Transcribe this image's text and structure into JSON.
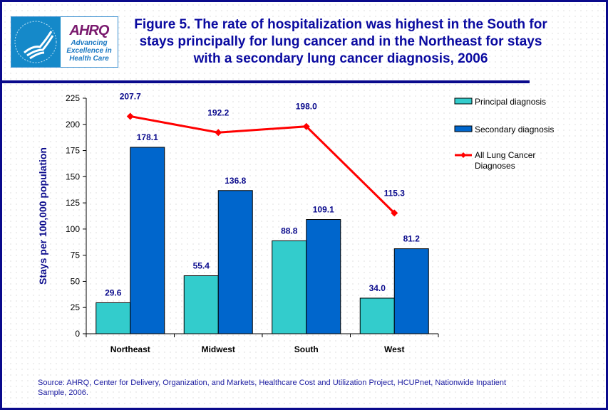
{
  "header": {
    "title": "Figure 5. The rate of hospitalization was highest in the South for stays principally for lung cancer and in the Northeast for stays with a secondary lung cancer diagnosis, 2006",
    "logo": {
      "brand": "AHRQ",
      "tagline": [
        "Advancing",
        "Excellence in",
        "Health Care"
      ]
    }
  },
  "source": "Source: AHRQ, Center for Delivery, Organization, and Markets, Healthcare Cost and Utilization Project, HCUPnet, Nationwide Inpatient Sample, 2006.",
  "colors": {
    "principal": "#33cccc",
    "secondary": "#0066cc",
    "line": "#ff0000",
    "labels": "#0a0a8c"
  },
  "chart_data": {
    "type": "bar+line",
    "categories": [
      "Northeast",
      "Midwest",
      "South",
      "West"
    ],
    "ylabel": "Stays per 100,000 population",
    "ylim": [
      0,
      225
    ],
    "yticks": [
      0,
      25,
      50,
      75,
      100,
      125,
      150,
      175,
      200,
      225
    ],
    "grid": false,
    "legend_position": "right",
    "series": [
      {
        "name": "Principal diagnosis",
        "type": "bar",
        "values": [
          29.6,
          55.4,
          88.8,
          34.0
        ],
        "labels": [
          "29.6",
          "55.4",
          "88.8",
          "34.0"
        ]
      },
      {
        "name": "Secondary diagnosis",
        "type": "bar",
        "values": [
          178.1,
          136.8,
          109.1,
          81.2
        ],
        "labels": [
          "178.1",
          "136.8",
          "109.1",
          "81.2"
        ]
      },
      {
        "name": "All Lung Cancer Diagnoses",
        "type": "line",
        "values": [
          207.7,
          192.2,
          198.0,
          115.3
        ],
        "labels": [
          "207.7",
          "192.2",
          "198.0",
          "115.3"
        ]
      }
    ]
  }
}
